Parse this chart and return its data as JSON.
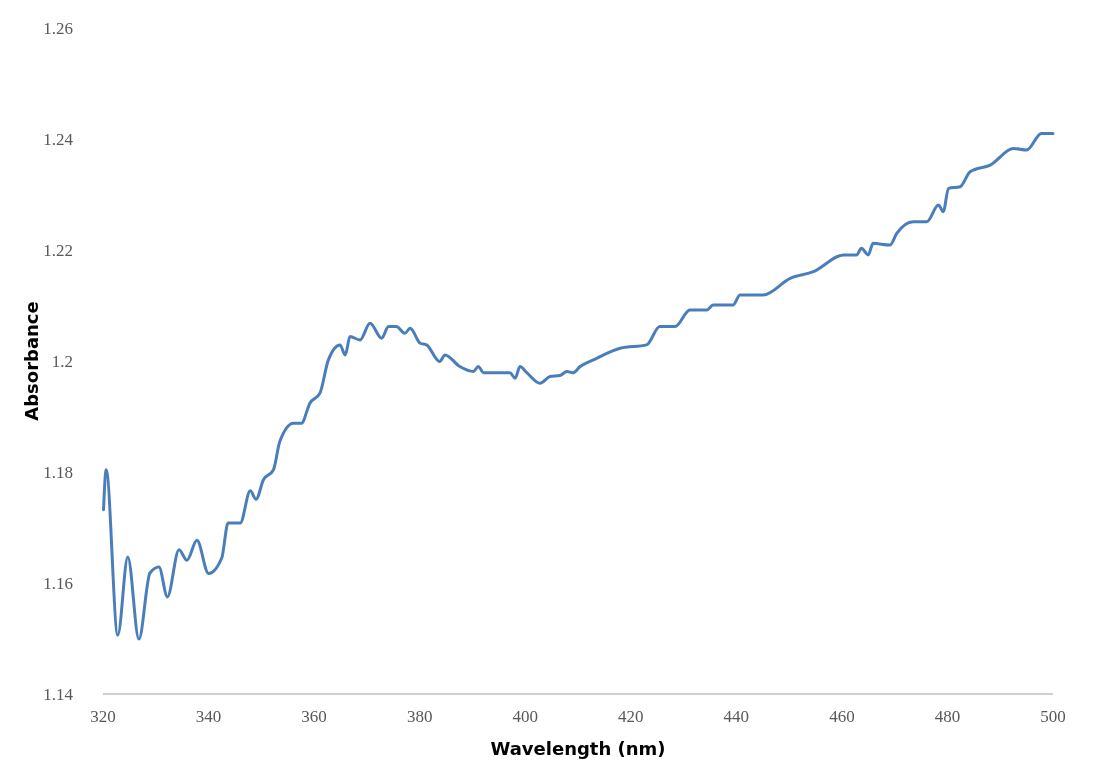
{
  "chart_data": {
    "type": "line",
    "xlabel": "Wavelength (nm)",
    "ylabel": "Absorbance",
    "xlim": [
      320,
      500
    ],
    "ylim": [
      1.14,
      1.26
    ],
    "xticks": [
      320,
      340,
      360,
      380,
      400,
      420,
      440,
      460,
      480,
      500
    ],
    "yticks": [
      1.14,
      1.16,
      1.18,
      1.2,
      1.22,
      1.24,
      1.26
    ],
    "series": [
      {
        "color": "#4a7ebb",
        "x": [
          320.1,
          320.6,
          322.8,
          324.7,
          326.8,
          328.9,
          330.6,
          332.2,
          334.4,
          335.9,
          337.8,
          340.0,
          342.5,
          343.7,
          346.0,
          347.9,
          349.0,
          350.4,
          352.3,
          353.5,
          356.1,
          357.6,
          359.2,
          361.1,
          362.7,
          364.9,
          365.9,
          366.8,
          368.7,
          370.6,
          372.8,
          374.1,
          375.6,
          377.2,
          378.2,
          380.1,
          381.3,
          383.8,
          384.8,
          387.6,
          390.2,
          391.1,
          392.1,
          397.1,
          398.1,
          399.0,
          400.3,
          402.8,
          404.7,
          406.6,
          407.9,
          409.1,
          410.4,
          412.9,
          418.0,
          423.0,
          425.5,
          428.4,
          431.2,
          434.4,
          435.6,
          439.4,
          440.7,
          445.1,
          450.2,
          454.6,
          460.3,
          462.8,
          463.7,
          465.0,
          465.9,
          469.1,
          470.4,
          473.5,
          476.1,
          478.3,
          479.2,
          480.2,
          482.4,
          484.3,
          488.1,
          492.5,
          495.0,
          497.8,
          500.0
        ],
        "values": [
          1.1732,
          1.1804,
          1.1506,
          1.1647,
          1.1499,
          1.1618,
          1.1629,
          1.1575,
          1.166,
          1.1641,
          1.1677,
          1.1617,
          1.1645,
          1.1708,
          1.1708,
          1.1766,
          1.1751,
          1.1786,
          1.1804,
          1.1855,
          1.1888,
          1.1888,
          1.1924,
          1.1942,
          1.2002,
          1.2029,
          1.2011,
          1.2044,
          1.2038,
          1.2068,
          1.2041,
          1.2062,
          1.2062,
          1.205,
          1.2059,
          1.2032,
          1.2029,
          1.1999,
          1.2011,
          1.199,
          1.1981,
          1.199,
          1.1979,
          1.1979,
          1.1969,
          1.199,
          1.1979,
          1.196,
          1.1972,
          1.1974,
          1.1981,
          1.1979,
          1.199,
          1.2002,
          1.2023,
          1.2029,
          1.2062,
          1.2062,
          1.2092,
          1.2092,
          1.2101,
          1.2101,
          1.2119,
          1.2119,
          1.2149,
          1.2161,
          1.2191,
          1.2191,
          1.2203,
          1.2191,
          1.2212,
          1.2209,
          1.223,
          1.2251,
          1.2251,
          1.2281,
          1.2269,
          1.2311,
          1.2314,
          1.2341,
          1.2353,
          1.2383,
          1.238,
          1.241,
          1.241
        ]
      }
    ]
  }
}
